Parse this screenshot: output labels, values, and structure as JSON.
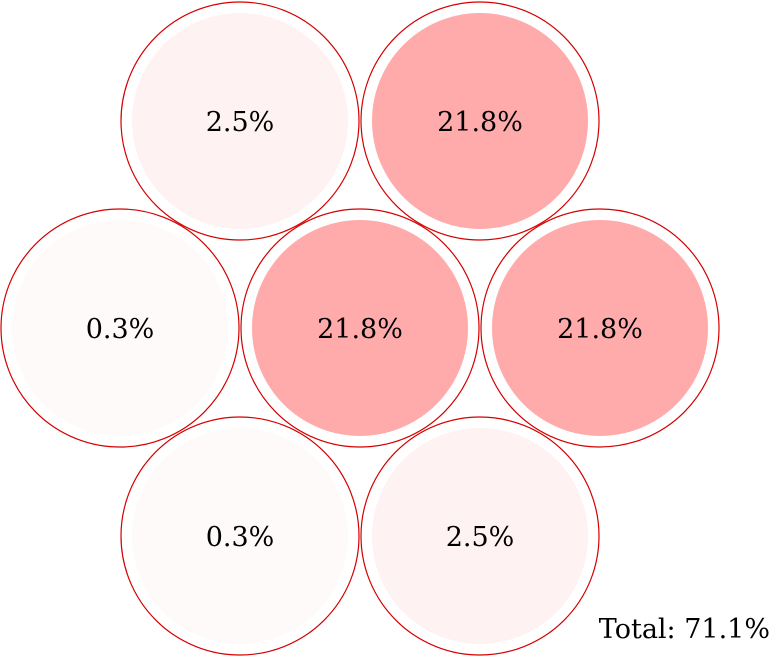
{
  "colors": {
    "ring": "#d40000",
    "fill_high": "#ffabab",
    "fill_mid": "#fff2f2",
    "fill_low": "#fffafa",
    "label": "#000000"
  },
  "cells": [
    {
      "id": "top-left",
      "label": "2.5%",
      "value": 2.5,
      "fill": "#fff2f2"
    },
    {
      "id": "top-right",
      "label": "21.8%",
      "value": 21.8,
      "fill": "#ffabab"
    },
    {
      "id": "middle-left",
      "label": "0.3%",
      "value": 0.3,
      "fill": "#fffafa"
    },
    {
      "id": "center",
      "label": "21.8%",
      "value": 21.8,
      "fill": "#ffabab"
    },
    {
      "id": "middle-right",
      "label": "21.8%",
      "value": 21.8,
      "fill": "#ffabab"
    },
    {
      "id": "bottom-left",
      "label": "0.3%",
      "value": 0.3,
      "fill": "#fffafa"
    },
    {
      "id": "bottom-right",
      "label": "2.5%",
      "value": 2.5,
      "fill": "#fff2f2"
    }
  ],
  "total": {
    "label": "Total: 71.1%"
  }
}
